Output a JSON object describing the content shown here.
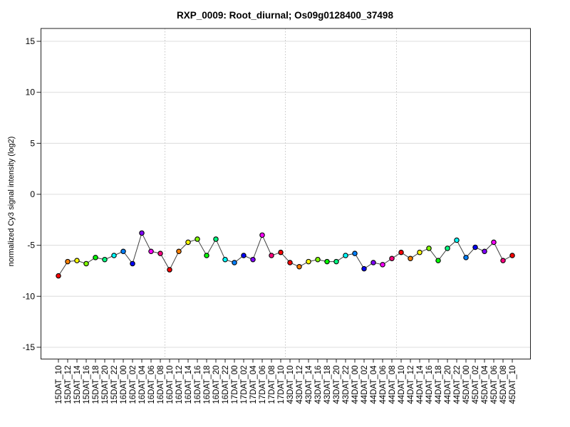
{
  "chart_data": {
    "type": "line",
    "title": "RXP_0009: Root_diurnal; Os09g0128400_37498",
    "xlabel": "",
    "ylabel": "normalized Cy3 signal intensity (log2)",
    "ylim": [
      -16.2,
      16.2
    ],
    "yticks": [
      15,
      10,
      5,
      0,
      -5,
      -10,
      -15
    ],
    "grid": {
      "horizontal": "solid",
      "vertical_separators": "dotted",
      "legend": "none"
    },
    "categories": [
      "15DAT_10",
      "15DAT_12",
      "15DAT_14",
      "15DAT_16",
      "15DAT_18",
      "15DAT_20",
      "15DAT_22",
      "16DAT_00",
      "16DAT_02",
      "16DAT_04",
      "16DAT_06",
      "16DAT_08",
      "16DAT_10",
      "16DAT_12",
      "16DAT_14",
      "16DAT_16",
      "16DAT_18",
      "16DAT_20",
      "16DAT_22",
      "17DAT_00",
      "17DAT_02",
      "17DAT_04",
      "17DAT_06",
      "17DAT_08",
      "17DAT_10",
      "43DAT_10",
      "43DAT_12",
      "43DAT_14",
      "43DAT_16",
      "43DAT_18",
      "43DAT_20",
      "43DAT_22",
      "44DAT_00",
      "44DAT_02",
      "44DAT_04",
      "44DAT_06",
      "44DAT_08",
      "44DAT_10",
      "44DAT_12",
      "44DAT_14",
      "44DAT_16",
      "44DAT_18",
      "44DAT_20",
      "44DAT_22",
      "45DAT_00",
      "45DAT_02",
      "45DAT_04",
      "45DAT_06",
      "45DAT_08",
      "45DAT_10"
    ],
    "values": [
      -8.0,
      -6.6,
      -6.5,
      -6.8,
      -6.2,
      -6.4,
      -6.0,
      -5.6,
      -6.8,
      -3.8,
      -5.6,
      -5.8,
      -7.4,
      -5.6,
      -4.7,
      -4.4,
      -6.0,
      -4.4,
      -6.4,
      -6.7,
      -6.0,
      -6.4,
      -4.0,
      -6.0,
      -5.7,
      -6.7,
      -7.1,
      -6.6,
      -6.4,
      -6.6,
      -6.6,
      -6.0,
      -5.8,
      -7.3,
      -6.7,
      -6.9,
      -6.3,
      -5.7,
      -6.3,
      -5.7,
      -5.3,
      -6.5,
      -5.3,
      -4.5,
      -6.2,
      -5.2,
      -5.6,
      -4.7,
      -6.5,
      -6.0
    ],
    "point_color_by_hour": {
      "10": "#FF0000",
      "12": "#FF8000",
      "14": "#FFFF00",
      "16": "#80FF00",
      "18": "#00FF00",
      "20": "#00FF80",
      "22": "#00FFFF",
      "00": "#0080FF",
      "02": "#0000FF",
      "04": "#8000FF",
      "06": "#FF00FF",
      "08": "#FF0080"
    },
    "separators_after_categories": [
      "16DAT_08",
      "17DAT_10",
      "44DAT_08"
    ],
    "colors": {
      "line": "#404040",
      "point_border": "#000000",
      "h_gridline": "#DCDCDC",
      "separator": "#C6C6C6",
      "plot_border": "#222222",
      "background": "#FFFFFF"
    }
  }
}
